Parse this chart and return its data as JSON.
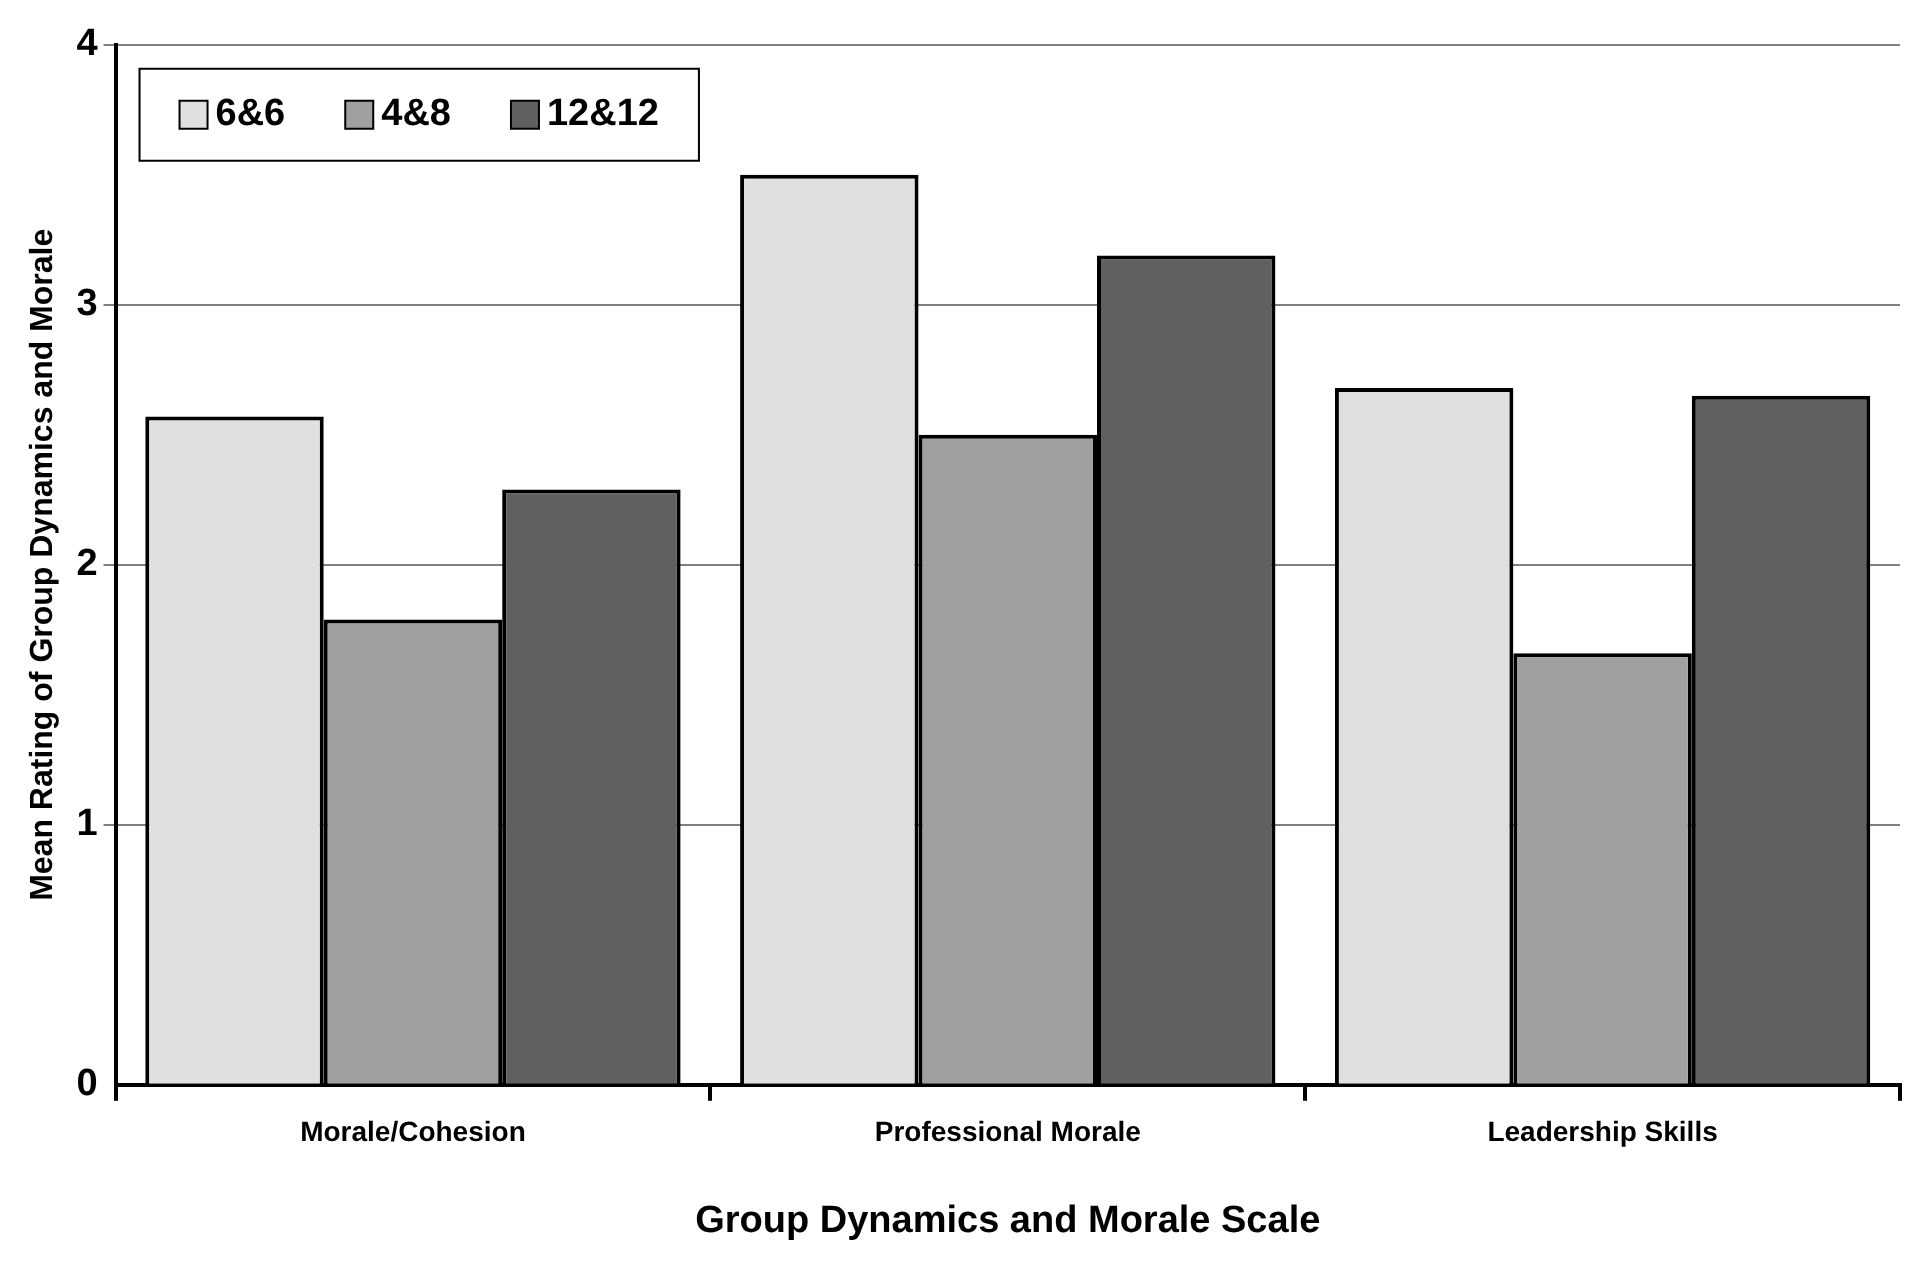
{
  "chart_data": {
    "type": "bar",
    "xlabel": "Group Dynamics and Morale Scale",
    "ylabel": "Mean Rating of Group Dynamics and Morale",
    "categories": [
      "Morale/Cohesion",
      "Professional Morale",
      "Leadership Skills"
    ],
    "series": [
      {
        "name": "6&6",
        "color": "#e0e0e0",
        "values": [
          2.57,
          3.5,
          2.68
        ]
      },
      {
        "name": "4&8",
        "color": "#a0a0a0",
        "values": [
          1.79,
          2.5,
          1.66
        ]
      },
      {
        "name": "12&12",
        "color": "#606060",
        "values": [
          2.29,
          3.19,
          2.65
        ]
      }
    ],
    "ylim": [
      0,
      4
    ],
    "yticks": [
      0,
      1,
      2,
      3,
      4
    ],
    "grid": "y",
    "legend": "top left"
  }
}
